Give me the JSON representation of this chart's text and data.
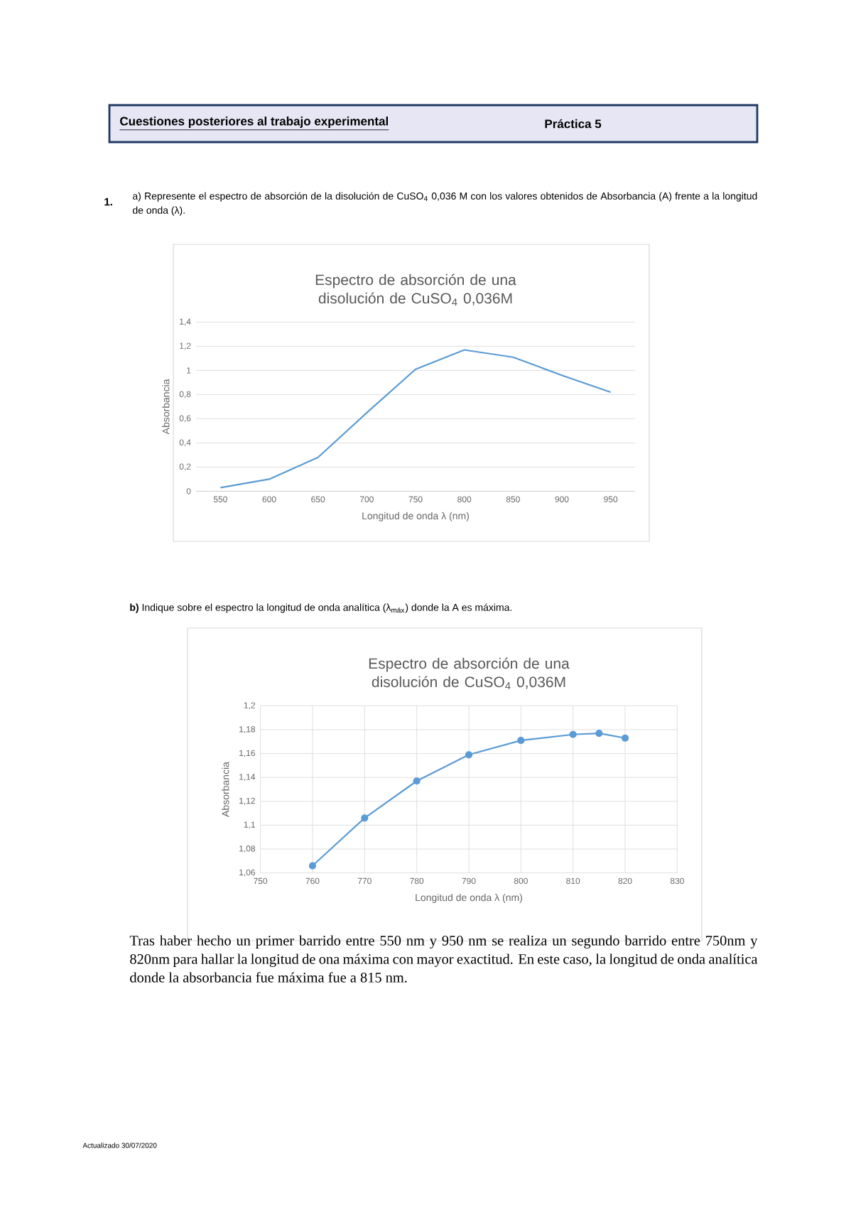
{
  "chart_data": [
    {
      "type": "line",
      "title": "Espectro de absorción de una disolución de CuSO$_{4}$ 0,036M",
      "xlabel": "Longitud de onda λ (nm)",
      "ylabel": "Absorbancia",
      "categories": [
        "550",
        "600",
        "650",
        "700",
        "750",
        "800",
        "850",
        "900",
        "950"
      ],
      "values": [
        0.03,
        0.1,
        0.28,
        0.65,
        1.01,
        1.17,
        1.11,
        0.96,
        0.82
      ],
      "color": "#5b9bd5",
      "ylim": [
        0,
        1.4
      ],
      "yticks": [
        0,
        {
          "value": 0.2,
          "label": "0,2"
        },
        {
          "value": 0.4,
          "label": "0,4"
        },
        {
          "value": 0.6,
          "label": "0,6"
        },
        {
          "value": 0.8,
          "label": "0,8"
        },
        1,
        {
          "value": 1.2,
          "label": "1,2"
        },
        {
          "value": 1.4,
          "label": "1,4"
        }
      ],
      "grid": "y",
      "annotations": [
        "Cuestiones posteriores al trabajo experimental",
        "Práctica 5",
        "1.",
        "a) Represente el espectro de absorción de la disolución de CuSO$_{4}$ 0,036 M con los valores obtenidos de Absorbancia (A) frente a la longitud de onda (λ).",
        "Actualizado 30/07/2020"
      ]
    },
    {
      "type": "line",
      "title": "Espectro de absorción de una disolución de CuSO$_{4}$ 0,036M",
      "xlabel": "Longitud de onda λ (nm)",
      "ylabel": "Absorbancia",
      "x": [
        760,
        770,
        780,
        790,
        800,
        810,
        815,
        820
      ],
      "values": [
        1.066,
        1.106,
        1.137,
        1.159,
        1.171,
        1.176,
        1.177,
        1.173
      ],
      "color": "#5b9bd5",
      "marker": "circle",
      "xlim": [
        750,
        830
      ],
      "xticks": [
        750,
        760,
        770,
        780,
        790,
        800,
        810,
        820,
        830
      ],
      "ylim": [
        1.06,
        1.2
      ],
      "yticks": [
        {
          "value": 1.06,
          "label": "1,06"
        },
        {
          "value": 1.08,
          "label": "1,08"
        },
        {
          "value": 1.1,
          "label": "1,1"
        },
        {
          "value": 1.12,
          "label": "1,12"
        },
        {
          "value": 1.14,
          "label": "1,14"
        },
        {
          "value": 1.16,
          "label": "1,16"
        },
        {
          "value": 1.18,
          "label": "1,18"
        },
        {
          "value": 1.2,
          "label": "1,2"
        }
      ],
      "grid": true,
      "annotations": [
        "**b)** Indique sobre el espectro la longitud de onda analítica (λ$_{máx}$) donde la A es máxima.",
        "Tras haber hecho un primer barrido entre 550 nm y 950 nm se realiza un segundo barrido entre 750nm y 820nm para hallar la longitud de ona máxima con mayor exactitud. En este caso, la longitud de onda analítica donde la absorbancia fue máxima fue a 815 nm."
      ]
    }
  ]
}
